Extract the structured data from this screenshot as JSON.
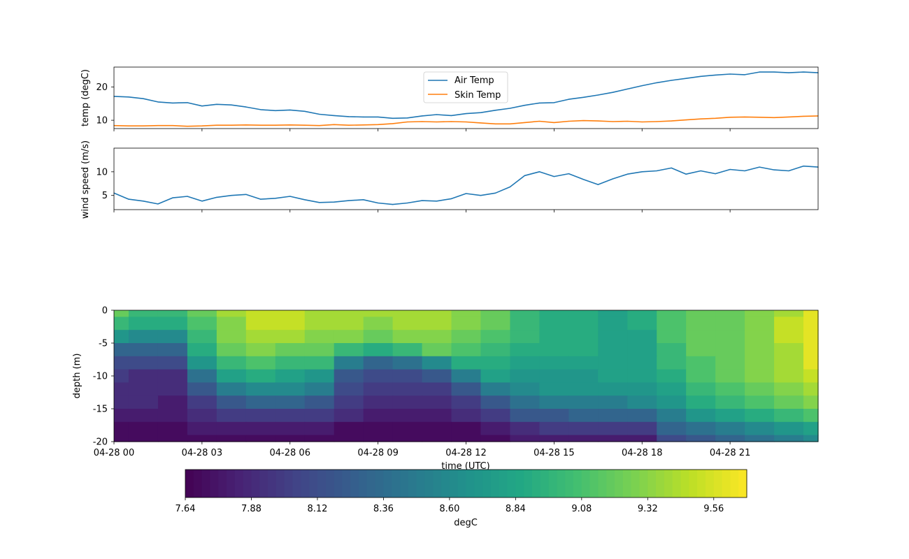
{
  "chart_data": [
    {
      "type": "line",
      "ylabel": "temp (degC)",
      "ylim": [
        7.5,
        26
      ],
      "yticks": [
        10,
        20
      ],
      "xlim_hours": [
        0,
        24
      ],
      "legend_placement": "upper-center",
      "series": [
        {
          "name": "Air Temp",
          "color": "#1f77b4",
          "x_hours": [
            0,
            0.5,
            1,
            1.5,
            2,
            2.5,
            3,
            3.5,
            4,
            4.5,
            5,
            5.5,
            6,
            6.5,
            7,
            7.5,
            8,
            8.5,
            9,
            9.5,
            10,
            10.5,
            11,
            11.5,
            12,
            12.5,
            13,
            13.5,
            14,
            14.5,
            15,
            15.5,
            16,
            16.5,
            17,
            17.5,
            18,
            18.5,
            19,
            19.5,
            20,
            20.5,
            21,
            21.5,
            22,
            22.5,
            23,
            23.5,
            24
          ],
          "values": [
            17.2,
            17.0,
            16.5,
            15.5,
            15.2,
            15.3,
            14.3,
            14.8,
            14.6,
            14.0,
            13.2,
            12.9,
            13.1,
            12.7,
            11.8,
            11.4,
            11.1,
            11.0,
            11.0,
            10.6,
            10.7,
            11.3,
            11.7,
            11.4,
            12.0,
            12.3,
            13.0,
            13.6,
            14.5,
            15.2,
            15.3,
            16.3,
            16.9,
            17.6,
            18.4,
            19.4,
            20.4,
            21.3,
            22.0,
            22.6,
            23.2,
            23.6,
            23.9,
            23.7,
            24.5,
            24.5,
            24.3,
            24.5,
            24.3
          ]
        },
        {
          "name": "Skin Temp",
          "color": "#ff7f0e",
          "x_hours": [
            0,
            0.5,
            1,
            1.5,
            2,
            2.5,
            3,
            3.5,
            4,
            4.5,
            5,
            5.5,
            6,
            6.5,
            7,
            7.5,
            8,
            8.5,
            9,
            9.5,
            10,
            10.5,
            11,
            11.5,
            12,
            12.5,
            13,
            13.5,
            14,
            14.5,
            15,
            15.5,
            16,
            16.5,
            17,
            17.5,
            18,
            18.5,
            19,
            19.5,
            20,
            20.5,
            21,
            21.5,
            22,
            22.5,
            23,
            23.5,
            24
          ],
          "values": [
            8.4,
            8.3,
            8.3,
            8.4,
            8.4,
            8.2,
            8.3,
            8.5,
            8.5,
            8.6,
            8.5,
            8.5,
            8.6,
            8.5,
            8.4,
            8.7,
            8.5,
            8.6,
            8.7,
            9.0,
            9.5,
            9.6,
            9.5,
            9.6,
            9.5,
            9.2,
            8.9,
            8.9,
            9.3,
            9.7,
            9.3,
            9.7,
            9.9,
            9.8,
            9.6,
            9.7,
            9.5,
            9.6,
            9.8,
            10.1,
            10.4,
            10.6,
            10.9,
            11.0,
            10.9,
            10.8,
            11.0,
            11.2,
            11.3
          ]
        }
      ]
    },
    {
      "type": "line",
      "ylabel": "wind speed (m/s)",
      "ylim": [
        2,
        15
      ],
      "yticks": [
        5,
        10
      ],
      "xlim_hours": [
        0,
        24
      ],
      "series": [
        {
          "color": "#1f77b4",
          "x_hours": [
            0,
            0.5,
            1,
            1.5,
            2,
            2.5,
            3,
            3.5,
            4,
            4.5,
            5,
            5.5,
            6,
            6.5,
            7,
            7.5,
            8,
            8.5,
            9,
            9.5,
            10,
            10.5,
            11,
            11.5,
            12,
            12.5,
            13,
            13.5,
            14,
            14.5,
            15,
            15.5,
            16,
            16.5,
            17,
            17.5,
            18,
            18.5,
            19,
            19.5,
            20,
            20.5,
            21,
            21.5,
            22,
            22.5,
            23,
            23.5,
            24
          ],
          "values": [
            5.5,
            4.2,
            3.8,
            3.2,
            4.5,
            4.8,
            3.8,
            4.6,
            5.0,
            5.2,
            4.2,
            4.4,
            4.8,
            4.1,
            3.5,
            3.6,
            3.9,
            4.1,
            3.4,
            3.1,
            3.4,
            3.9,
            3.8,
            4.3,
            5.4,
            5.0,
            5.5,
            6.8,
            9.2,
            10.0,
            9.0,
            9.6,
            8.4,
            7.3,
            8.5,
            9.5,
            10.0,
            10.2,
            10.8,
            9.5,
            10.2,
            9.6,
            10.5,
            10.2,
            11.0,
            10.4,
            10.2,
            11.2,
            11.0
          ]
        }
      ]
    },
    {
      "type": "heatmap",
      "ylabel": "depth (m)",
      "xlabel": "time (UTC)",
      "ylim": [
        -20,
        0
      ],
      "yticks": [
        0,
        -5,
        -10,
        -15,
        -20
      ],
      "xlim_hours": [
        0,
        24
      ],
      "xtick_labels": [
        "04-28 00",
        "04-28 03",
        "04-28 06",
        "04-28 09",
        "04-28 12",
        "04-28 15",
        "04-28 18",
        "04-28 21"
      ],
      "colormap": "viridis",
      "colorbar": {
        "label": "degC",
        "vmin": 7.64,
        "vmax": 9.68,
        "tick_values": [
          7.64,
          7.88,
          8.12,
          8.36,
          8.6,
          8.84,
          9.08,
          9.32,
          9.56
        ],
        "tick_labels": [
          "7.64",
          "7.88",
          "8.12",
          "8.36",
          "8.60",
          "8.84",
          "9.08",
          "9.32",
          "9.56"
        ]
      },
      "depth_m": [
        0,
        -2,
        -4,
        -6,
        -8,
        -10,
        -12,
        -14,
        -16,
        -18,
        -20
      ],
      "time_hours": [
        0,
        1,
        2,
        3,
        4,
        5,
        6,
        7,
        8,
        9,
        10,
        11,
        12,
        13,
        14,
        15,
        16,
        17,
        18,
        19,
        20,
        21,
        22,
        23,
        24
      ],
      "values_degC": [
        [
          9.2,
          9.0,
          9.0,
          9.2,
          9.4,
          9.5,
          9.5,
          9.4,
          9.4,
          9.4,
          9.4,
          9.4,
          9.3,
          9.2,
          9.0,
          8.9,
          8.9,
          8.8,
          8.9,
          9.1,
          9.2,
          9.2,
          9.3,
          9.4,
          9.6
        ],
        [
          9.0,
          8.9,
          8.9,
          9.1,
          9.3,
          9.5,
          9.5,
          9.4,
          9.4,
          9.3,
          9.4,
          9.4,
          9.3,
          9.2,
          9.0,
          8.9,
          8.9,
          8.8,
          8.9,
          9.1,
          9.2,
          9.2,
          9.3,
          9.5,
          9.6
        ],
        [
          8.7,
          8.6,
          8.6,
          9.0,
          9.3,
          9.4,
          9.4,
          9.3,
          9.3,
          9.2,
          9.3,
          9.3,
          9.2,
          9.1,
          9.0,
          8.9,
          8.9,
          8.8,
          8.8,
          9.1,
          9.2,
          9.2,
          9.3,
          9.5,
          9.6
        ],
        [
          8.3,
          8.3,
          8.3,
          8.9,
          9.2,
          9.3,
          9.2,
          9.2,
          9.0,
          8.9,
          9.0,
          9.2,
          9.1,
          9.0,
          8.9,
          8.9,
          8.9,
          8.8,
          8.8,
          9.0,
          9.2,
          9.2,
          9.3,
          9.4,
          9.6
        ],
        [
          8.1,
          8.1,
          8.1,
          8.7,
          9.0,
          9.1,
          9.0,
          9.0,
          8.5,
          8.3,
          8.4,
          8.6,
          8.9,
          8.9,
          8.8,
          8.8,
          8.8,
          8.8,
          8.8,
          9.0,
          9.1,
          9.2,
          9.3,
          9.4,
          9.6
        ],
        [
          8.0,
          7.9,
          7.9,
          8.4,
          8.8,
          8.9,
          8.8,
          8.7,
          8.2,
          8.1,
          8.1,
          8.2,
          8.5,
          8.8,
          8.7,
          8.7,
          8.7,
          8.8,
          8.8,
          8.9,
          9.1,
          9.2,
          9.3,
          9.4,
          9.5
        ],
        [
          7.9,
          7.9,
          7.9,
          8.2,
          8.5,
          8.6,
          8.6,
          8.5,
          8.1,
          8.0,
          8.0,
          8.0,
          8.2,
          8.5,
          8.6,
          8.7,
          8.7,
          8.7,
          8.7,
          8.8,
          9.0,
          9.1,
          9.2,
          9.3,
          9.4
        ],
        [
          7.9,
          7.9,
          7.8,
          8.0,
          8.2,
          8.3,
          8.3,
          8.2,
          8.0,
          7.9,
          7.9,
          7.9,
          8.0,
          8.2,
          8.4,
          8.5,
          8.5,
          8.5,
          8.6,
          8.7,
          8.9,
          9.0,
          9.1,
          9.2,
          9.3
        ],
        [
          7.8,
          7.8,
          7.8,
          7.9,
          8.0,
          8.0,
          8.0,
          8.0,
          7.9,
          7.8,
          7.8,
          7.8,
          7.9,
          8.0,
          8.2,
          8.2,
          8.3,
          8.3,
          8.3,
          8.5,
          8.7,
          8.8,
          8.9,
          9.0,
          9.1
        ],
        [
          7.7,
          7.7,
          7.7,
          7.8,
          7.8,
          7.8,
          7.8,
          7.8,
          7.7,
          7.7,
          7.7,
          7.7,
          7.7,
          7.8,
          7.9,
          8.0,
          8.0,
          8.0,
          8.0,
          8.3,
          8.4,
          8.5,
          8.6,
          8.7,
          8.8
        ],
        [
          7.7,
          7.7,
          7.7,
          7.7,
          7.7,
          7.7,
          7.7,
          7.7,
          7.7,
          7.7,
          7.7,
          7.7,
          7.7,
          7.7,
          7.8,
          7.8,
          7.8,
          7.8,
          7.8,
          8.1,
          8.2,
          8.3,
          8.4,
          8.5,
          8.6
        ]
      ]
    }
  ]
}
